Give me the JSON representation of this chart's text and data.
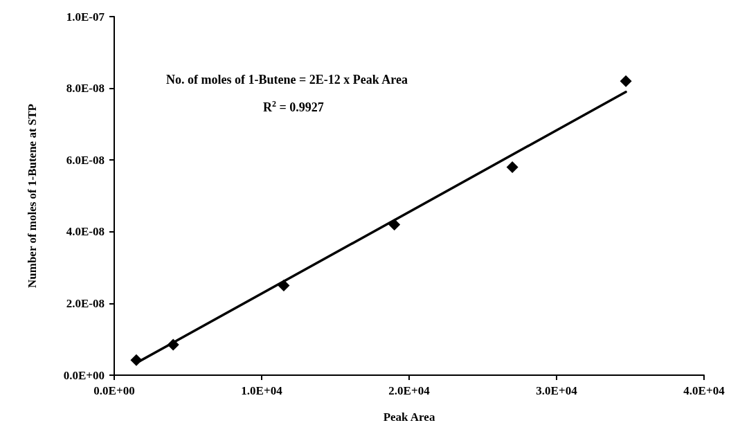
{
  "chart_data": {
    "type": "scatter",
    "xlabel": "Peak Area",
    "ylabel": "Number of moles of 1-Butene at STP",
    "annotations": [
      "No. of moles of 1-Butene = 2E-12 x Peak Area",
      "R$^{2}$ = 0.9927"
    ],
    "marker": "diamond",
    "grid": false,
    "series": [
      {
        "color": "#000000",
        "x": [
          1500,
          4000,
          11500,
          19000,
          27000,
          34700
        ],
        "values": [
          4.2e-09,
          8.5e-09,
          2.5e-08,
          4.2e-08,
          5.8e-08,
          8.2e-08
        ]
      },
      {
        "type": "line",
        "color": "#000000",
        "marker": "none",
        "x": [
          1500,
          34700
        ],
        "values": [
          3.4e-09,
          7.9e-08
        ]
      }
    ],
    "xlim": [
      0,
      40000
    ],
    "xticks": [
      {
        "value": 0,
        "label": "0.0E+00"
      },
      {
        "value": 10000,
        "label": "1.0E+04"
      },
      {
        "value": 20000,
        "label": "2.0E+04"
      },
      {
        "value": 30000,
        "label": "3.0E+04"
      },
      {
        "value": 40000,
        "label": "4.0E+04"
      }
    ],
    "ylim": [
      0,
      1e-07
    ],
    "yticks": [
      {
        "value": 0,
        "label": "0.0E+00"
      },
      {
        "value": 2e-08,
        "label": "2.0E-08"
      },
      {
        "value": 4e-08,
        "label": "4.0E-08"
      },
      {
        "value": 6e-08,
        "label": "6.0E-08"
      },
      {
        "value": 8e-08,
        "label": "8.0E-08"
      },
      {
        "value": 1e-07,
        "label": "1.0E-07"
      }
    ]
  }
}
